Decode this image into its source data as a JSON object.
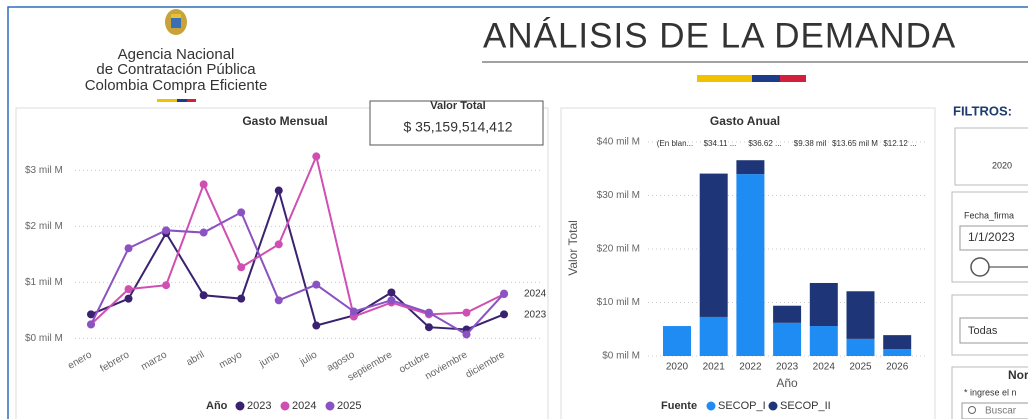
{
  "header": {
    "agency": [
      "Agencia Nacional",
      "de Contratación Pública",
      "Colombia Compra Eficiente"
    ],
    "title": "ANÁLISIS DE LA DEMANDA"
  },
  "kpi": {
    "label": "Valor Total",
    "value": "$ 35,159,514,412"
  },
  "chart_data": [
    {
      "type": "line",
      "title": "Gasto Mensual",
      "categories": [
        "enero",
        "febrero",
        "marzo",
        "abril",
        "mayo",
        "junio",
        "julio",
        "agosto",
        "septiembre",
        "octubre",
        "noviembre",
        "diciembre"
      ],
      "series": [
        {
          "name": "2023",
          "color": "#3a2270",
          "values": [
            0.43,
            0.71,
            1.88,
            0.77,
            0.71,
            2.64,
            0.23,
            0.41,
            0.82,
            0.2,
            0.16,
            0.43
          ]
        },
        {
          "name": "2024",
          "color": "#d04fb2",
          "values": [
            0.25,
            0.88,
            0.95,
            2.75,
            1.27,
            1.68,
            3.25,
            0.39,
            0.64,
            0.43,
            0.46,
            0.79
          ]
        },
        {
          "name": "2025",
          "color": "#8a52c2",
          "values": [
            0.25,
            1.61,
            1.93,
            1.89,
            2.25,
            0.68,
            0.96,
            0.48,
            0.68,
            0.46,
            0.07,
            0.8
          ]
        }
      ],
      "end_labels": [
        "2024",
        "2023"
      ],
      "legend_title": "Año",
      "ylim": [
        -0.1,
        3.4
      ],
      "yticks": [
        {
          "value": 0,
          "label": "$0 mil M"
        },
        {
          "value": 1,
          "label": "$1 mil M"
        },
        {
          "value": 2,
          "label": "$2 mil M"
        },
        {
          "value": 3,
          "label": "$3 mil M"
        }
      ],
      "grid": true
    },
    {
      "type": "bar",
      "title": "Gasto Anual",
      "stacked": true,
      "categories": [
        "2020",
        "2021",
        "2022",
        "2023",
        "2024",
        "2025",
        "2026"
      ],
      "series": [
        {
          "name": "SECOP_I",
          "color": "#1f8cf4",
          "values": [
            5.6,
            7.3,
            34.0,
            6.2,
            5.6,
            3.2,
            1.3
          ]
        },
        {
          "name": "SECOP_II",
          "color": "#1e3677",
          "values": [
            0,
            26.8,
            2.6,
            3.2,
            8.05,
            8.9,
            2.6
          ]
        }
      ],
      "annotations": [
        "(En blan...",
        "$34.11 ...",
        "$36.62 ...",
        "$9.38 mil",
        "$13.65 mil M",
        "$12.12 ..."
      ],
      "ylabel": "Valor Total",
      "xlabel": "Año",
      "legend_title": "Fuente",
      "ylim": [
        0,
        41.5
      ],
      "yticks": [
        {
          "value": 0,
          "label": "$0 mil M"
        },
        {
          "value": 10,
          "label": "$10 mil M"
        },
        {
          "value": 20,
          "label": "$20 mil M"
        },
        {
          "value": 30,
          "label": "$30 mil M"
        },
        {
          "value": 40,
          "label": "$40 mil M"
        }
      ],
      "grid": true
    }
  ],
  "filters": {
    "title": "FILTROS:",
    "year": "2020",
    "date_label": "Fecha_firma",
    "date_value": "1/1/2023",
    "dropdown": "Todas",
    "search_title": "Nor",
    "search_hint": "* ingrese el n",
    "search_placeholder": "Buscar"
  }
}
